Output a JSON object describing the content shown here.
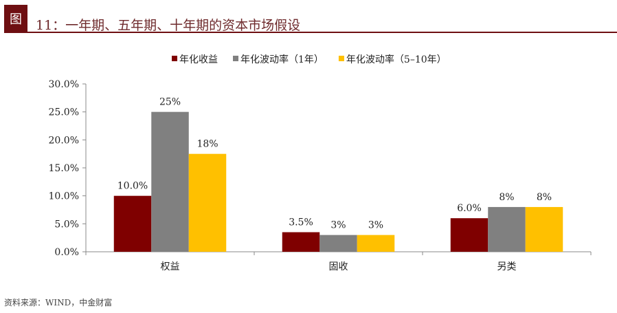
{
  "header": {
    "badge": "图",
    "title": "11：一年期、五年期、十年期的资本市场假设"
  },
  "source": "资料来源：WIND，中金财富",
  "chart_data": {
    "type": "bar",
    "title": "",
    "categories": [
      "权益",
      "固收",
      "另类"
    ],
    "series": [
      {
        "name": "年化收益",
        "color": "#7f0000",
        "values": [
          10.0,
          3.5,
          6.0
        ],
        "labels": [
          "10.0%",
          "3.5%",
          "6.0%"
        ]
      },
      {
        "name": "年化波动率（1年）",
        "color": "#808080",
        "values": [
          25,
          3,
          8
        ],
        "labels": [
          "25%",
          "3%",
          "8%"
        ]
      },
      {
        "name": "年化波动率（5–10年）",
        "color": "#ffc000",
        "values": [
          17.5,
          3,
          8
        ],
        "labels": [
          "18%",
          "3%",
          "8%"
        ]
      }
    ],
    "yticks": [
      "0.0%",
      "5.0%",
      "10.0%",
      "15.0%",
      "20.0%",
      "25.0%",
      "30.0%"
    ],
    "ylim": [
      0,
      30
    ],
    "xlabel": "",
    "ylabel": "",
    "legend": "top-center",
    "grid": false
  }
}
